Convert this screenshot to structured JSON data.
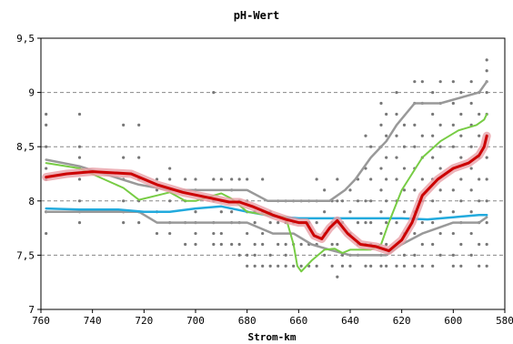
{
  "chart_data": {
    "type": "line",
    "title": "pH-Wert",
    "xlabel": "Strom-km",
    "ylabel": "",
    "xlim": [
      760,
      580
    ],
    "ylim": [
      7,
      9.5
    ],
    "x_reversed": true,
    "grid": true,
    "x_ticks": [
      {
        "value": 760,
        "label": "760"
      },
      {
        "value": 740,
        "label": "740"
      },
      {
        "value": 720,
        "label": "720"
      },
      {
        "value": 700,
        "label": "700"
      },
      {
        "value": 680,
        "label": "680"
      },
      {
        "value": 660,
        "label": "660"
      },
      {
        "value": 640,
        "label": "640"
      },
      {
        "value": 620,
        "label": "620"
      },
      {
        "value": 600,
        "label": "600"
      },
      {
        "value": 580,
        "label": "580"
      }
    ],
    "y_ticks": [
      {
        "value": 7,
        "label": "7"
      },
      {
        "value": 7.5,
        "label": "7,5"
      },
      {
        "value": 8,
        "label": "8"
      },
      {
        "value": 8.5,
        "label": "8,5"
      },
      {
        "value": 9,
        "label": "9"
      },
      {
        "value": 9.5,
        "label": "9,5"
      }
    ],
    "series": [
      {
        "color": "#999999",
        "width": 2.5,
        "x": [
          758,
          745,
          722,
          710,
          700,
          690,
          680,
          672,
          665,
          655,
          648,
          642,
          638,
          632,
          626,
          622,
          615,
          605,
          590,
          587
        ],
        "y": [
          8.38,
          8.32,
          8.15,
          8.1,
          8.1,
          8.1,
          8.1,
          8.0,
          8.0,
          8.0,
          8.0,
          8.1,
          8.2,
          8.4,
          8.55,
          8.7,
          8.9,
          8.9,
          9.0,
          9.1
        ]
      },
      {
        "color": "#999999",
        "width": 2.5,
        "x": [
          758,
          745,
          722,
          715,
          700,
          692,
          680,
          670,
          662,
          655,
          648,
          640,
          632,
          626,
          620,
          612,
          600,
          590,
          587
        ],
        "y": [
          7.9,
          7.9,
          7.9,
          7.8,
          7.8,
          7.8,
          7.8,
          7.7,
          7.7,
          7.6,
          7.55,
          7.5,
          7.5,
          7.5,
          7.6,
          7.7,
          7.8,
          7.8,
          7.85
        ]
      },
      {
        "color": "#22aadd",
        "width": 2.5,
        "x": [
          758,
          745,
          730,
          720,
          710,
          700,
          690,
          680,
          670,
          660,
          650,
          640,
          630,
          620,
          610,
          600,
          590,
          587
        ],
        "y": [
          7.93,
          7.92,
          7.92,
          7.9,
          7.9,
          7.93,
          7.95,
          7.9,
          7.86,
          7.84,
          7.84,
          7.84,
          7.84,
          7.84,
          7.83,
          7.85,
          7.87,
          7.87
        ]
      },
      {
        "color": "#77cc44",
        "width": 2,
        "x": [
          758,
          745,
          728,
          722,
          715,
          710,
          704,
          700,
          693,
          690,
          686,
          680,
          672,
          665,
          662,
          660.5,
          659,
          655,
          650,
          646,
          643,
          640,
          632,
          628,
          625,
          620,
          612,
          605,
          598,
          591,
          588,
          587
        ],
        "y": [
          8.35,
          8.3,
          8.12,
          8.01,
          8.05,
          8.08,
          8.0,
          8.0,
          8.05,
          8.07,
          8.02,
          7.9,
          7.87,
          7.85,
          7.6,
          7.4,
          7.35,
          7.45,
          7.55,
          7.56,
          7.52,
          7.55,
          7.55,
          7.6,
          7.8,
          8.1,
          8.4,
          8.55,
          8.65,
          8.7,
          8.75,
          8.8
        ]
      },
      {
        "color": "#cc0000",
        "width": 3,
        "glow": "#e8a0a8",
        "x": [
          758,
          750,
          740,
          725,
          715,
          705,
          695,
          687,
          683,
          678,
          670,
          665,
          660,
          657,
          654,
          651,
          648,
          645,
          641,
          636,
          630,
          625,
          620,
          616,
          612,
          606,
          600,
          594,
          590,
          588,
          587
        ],
        "y": [
          8.22,
          8.25,
          8.27,
          8.25,
          8.15,
          8.08,
          8.03,
          7.99,
          7.99,
          7.95,
          7.87,
          7.83,
          7.8,
          7.8,
          7.68,
          7.65,
          7.75,
          7.82,
          7.7,
          7.6,
          7.58,
          7.54,
          7.64,
          7.8,
          8.05,
          8.2,
          8.3,
          8.35,
          8.42,
          8.5,
          8.6
        ]
      }
    ],
    "scatter": [
      [
        758,
        8.8
      ],
      [
        758,
        8.7
      ],
      [
        758,
        8.5
      ],
      [
        758,
        8.3
      ],
      [
        758,
        8.2
      ],
      [
        758,
        7.9
      ],
      [
        758,
        7.7
      ],
      [
        745,
        8.8
      ],
      [
        745,
        8.5
      ],
      [
        745,
        8.4
      ],
      [
        745,
        8.3
      ],
      [
        745,
        8.2
      ],
      [
        745,
        8.0
      ],
      [
        745,
        7.9
      ],
      [
        745,
        7.8
      ],
      [
        728,
        8.7
      ],
      [
        728,
        8.4
      ],
      [
        728,
        8.2
      ],
      [
        728,
        8.0
      ],
      [
        728,
        7.9
      ],
      [
        728,
        7.8
      ],
      [
        722,
        8.7
      ],
      [
        722,
        8.4
      ],
      [
        722,
        8.2
      ],
      [
        722,
        8.0
      ],
      [
        722,
        7.9
      ],
      [
        722,
        7.8
      ],
      [
        715,
        8.2
      ],
      [
        715,
        8.1
      ],
      [
        715,
        7.9
      ],
      [
        715,
        7.7
      ],
      [
        710,
        8.3
      ],
      [
        710,
        8.2
      ],
      [
        710,
        8.0
      ],
      [
        710,
        7.8
      ],
      [
        710,
        7.7
      ],
      [
        704,
        8.2
      ],
      [
        704,
        8.0
      ],
      [
        704,
        7.8
      ],
      [
        704,
        7.6
      ],
      [
        700,
        8.2
      ],
      [
        700,
        8.1
      ],
      [
        700,
        7.9
      ],
      [
        700,
        7.8
      ],
      [
        700,
        7.7
      ],
      [
        700,
        7.6
      ],
      [
        693,
        9.0
      ],
      [
        693,
        8.2
      ],
      [
        693,
        8.0
      ],
      [
        693,
        7.8
      ],
      [
        693,
        7.7
      ],
      [
        693,
        7.6
      ],
      [
        690,
        8.2
      ],
      [
        690,
        8.0
      ],
      [
        690,
        7.9
      ],
      [
        690,
        7.7
      ],
      [
        690,
        7.6
      ],
      [
        686,
        8.2
      ],
      [
        686,
        8.1
      ],
      [
        686,
        7.9
      ],
      [
        686,
        7.8
      ],
      [
        686,
        7.6
      ],
      [
        683,
        8.2
      ],
      [
        683,
        8.0
      ],
      [
        683,
        7.8
      ],
      [
        683,
        7.6
      ],
      [
        683,
        7.5
      ],
      [
        680,
        8.2
      ],
      [
        680,
        8.0
      ],
      [
        680,
        7.9
      ],
      [
        680,
        7.7
      ],
      [
        680,
        7.5
      ],
      [
        680,
        7.4
      ],
      [
        677,
        7.9
      ],
      [
        677,
        7.8
      ],
      [
        677,
        7.6
      ],
      [
        677,
        7.5
      ],
      [
        677,
        7.4
      ],
      [
        674,
        8.2
      ],
      [
        674,
        7.9
      ],
      [
        674,
        7.7
      ],
      [
        674,
        7.6
      ],
      [
        674,
        7.4
      ],
      [
        671,
        7.9
      ],
      [
        671,
        7.8
      ],
      [
        671,
        7.5
      ],
      [
        671,
        7.4
      ],
      [
        668,
        8.0
      ],
      [
        668,
        7.8
      ],
      [
        668,
        7.6
      ],
      [
        668,
        7.4
      ],
      [
        665,
        8.0
      ],
      [
        665,
        7.8
      ],
      [
        665,
        7.6
      ],
      [
        665,
        7.5
      ],
      [
        665,
        7.4
      ],
      [
        662,
        8.0
      ],
      [
        662,
        7.8
      ],
      [
        662,
        7.6
      ],
      [
        662,
        7.4
      ],
      [
        659,
        8.0
      ],
      [
        659,
        7.8
      ],
      [
        659,
        7.6
      ],
      [
        659,
        7.4
      ],
      [
        656,
        8.0
      ],
      [
        656,
        7.8
      ],
      [
        656,
        7.6
      ],
      [
        656,
        7.4
      ],
      [
        653,
        8.2
      ],
      [
        653,
        8.0
      ],
      [
        653,
        7.8
      ],
      [
        653,
        7.6
      ],
      [
        653,
        7.4
      ],
      [
        650,
        8.1
      ],
      [
        650,
        7.9
      ],
      [
        650,
        7.7
      ],
      [
        650,
        7.5
      ],
      [
        647,
        8.0
      ],
      [
        647,
        7.8
      ],
      [
        647,
        7.6
      ],
      [
        647,
        7.4
      ],
      [
        645,
        8.2
      ],
      [
        645,
        8.0
      ],
      [
        645,
        7.8
      ],
      [
        645,
        7.6
      ],
      [
        645,
        7.3
      ],
      [
        643,
        8.0
      ],
      [
        643,
        7.8
      ],
      [
        643,
        7.5
      ],
      [
        643,
        7.4
      ],
      [
        640,
        8.1
      ],
      [
        640,
        7.9
      ],
      [
        640,
        7.7
      ],
      [
        640,
        7.5
      ],
      [
        640,
        7.4
      ],
      [
        637,
        8.2
      ],
      [
        637,
        8.0
      ],
      [
        637,
        7.8
      ],
      [
        637,
        7.6
      ],
      [
        637,
        7.5
      ],
      [
        634,
        8.6
      ],
      [
        634,
        8.3
      ],
      [
        634,
        8.0
      ],
      [
        634,
        7.8
      ],
      [
        634,
        7.6
      ],
      [
        634,
        7.4
      ],
      [
        632,
        8.5
      ],
      [
        632,
        8.2
      ],
      [
        632,
        8.0
      ],
      [
        632,
        7.8
      ],
      [
        632,
        7.6
      ],
      [
        632,
        7.4
      ],
      [
        628,
        8.9
      ],
      [
        628,
        8.7
      ],
      [
        628,
        8.5
      ],
      [
        628,
        8.3
      ],
      [
        628,
        8.1
      ],
      [
        628,
        7.9
      ],
      [
        628,
        7.7
      ],
      [
        628,
        7.5
      ],
      [
        628,
        7.4
      ],
      [
        626,
        8.8
      ],
      [
        626,
        8.6
      ],
      [
        626,
        8.4
      ],
      [
        626,
        8.2
      ],
      [
        626,
        8.0
      ],
      [
        626,
        7.8
      ],
      [
        626,
        7.6
      ],
      [
        626,
        7.4
      ],
      [
        622,
        9.0
      ],
      [
        622,
        8.8
      ],
      [
        622,
        8.6
      ],
      [
        622,
        8.4
      ],
      [
        622,
        8.2
      ],
      [
        622,
        8.0
      ],
      [
        622,
        7.8
      ],
      [
        622,
        7.6
      ],
      [
        622,
        7.4
      ],
      [
        619,
        8.7
      ],
      [
        619,
        8.5
      ],
      [
        619,
        8.3
      ],
      [
        619,
        8.1
      ],
      [
        619,
        7.9
      ],
      [
        619,
        7.7
      ],
      [
        619,
        7.5
      ],
      [
        619,
        7.4
      ],
      [
        615,
        9.1
      ],
      [
        615,
        8.9
      ],
      [
        615,
        8.7
      ],
      [
        615,
        8.5
      ],
      [
        615,
        8.3
      ],
      [
        615,
        8.1
      ],
      [
        615,
        7.9
      ],
      [
        615,
        7.7
      ],
      [
        615,
        7.5
      ],
      [
        615,
        7.4
      ],
      [
        612,
        9.1
      ],
      [
        612,
        8.9
      ],
      [
        612,
        8.6
      ],
      [
        612,
        8.4
      ],
      [
        612,
        8.2
      ],
      [
        612,
        8.0
      ],
      [
        612,
        7.8
      ],
      [
        612,
        7.6
      ],
      [
        612,
        7.4
      ],
      [
        608,
        9.0
      ],
      [
        608,
        8.8
      ],
      [
        608,
        8.6
      ],
      [
        608,
        8.4
      ],
      [
        608,
        8.2
      ],
      [
        608,
        8.0
      ],
      [
        608,
        7.8
      ],
      [
        608,
        7.6
      ],
      [
        608,
        7.4
      ],
      [
        605,
        9.1
      ],
      [
        605,
        8.9
      ],
      [
        605,
        8.7
      ],
      [
        605,
        8.5
      ],
      [
        605,
        8.3
      ],
      [
        605,
        8.1
      ],
      [
        605,
        7.9
      ],
      [
        605,
        7.7
      ],
      [
        605,
        7.5
      ],
      [
        600,
        9.1
      ],
      [
        600,
        8.9
      ],
      [
        600,
        8.7
      ],
      [
        600,
        8.5
      ],
      [
        600,
        8.3
      ],
      [
        600,
        8.1
      ],
      [
        600,
        7.9
      ],
      [
        600,
        7.7
      ],
      [
        600,
        7.5
      ],
      [
        600,
        7.4
      ],
      [
        597,
        9.0
      ],
      [
        597,
        8.8
      ],
      [
        597,
        8.6
      ],
      [
        597,
        8.4
      ],
      [
        597,
        8.2
      ],
      [
        597,
        8.0
      ],
      [
        597,
        7.8
      ],
      [
        597,
        7.6
      ],
      [
        597,
        7.4
      ],
      [
        593,
        9.1
      ],
      [
        593,
        8.9
      ],
      [
        593,
        8.7
      ],
      [
        593,
        8.5
      ],
      [
        593,
        8.3
      ],
      [
        593,
        8.1
      ],
      [
        593,
        7.9
      ],
      [
        593,
        7.7
      ],
      [
        593,
        7.5
      ],
      [
        590,
        9.0
      ],
      [
        590,
        8.8
      ],
      [
        590,
        8.6
      ],
      [
        590,
        8.4
      ],
      [
        590,
        8.2
      ],
      [
        590,
        8.0
      ],
      [
        590,
        7.8
      ],
      [
        590,
        7.6
      ],
      [
        590,
        7.4
      ],
      [
        587,
        9.3
      ],
      [
        587,
        9.2
      ],
      [
        587,
        9.1
      ],
      [
        587,
        9.0
      ],
      [
        587,
        8.8
      ],
      [
        587,
        8.6
      ],
      [
        587,
        8.4
      ],
      [
        587,
        8.2
      ],
      [
        587,
        8.0
      ],
      [
        587,
        7.8
      ],
      [
        587,
        7.6
      ],
      [
        587,
        7.4
      ]
    ],
    "scatter_color": "#777777"
  }
}
